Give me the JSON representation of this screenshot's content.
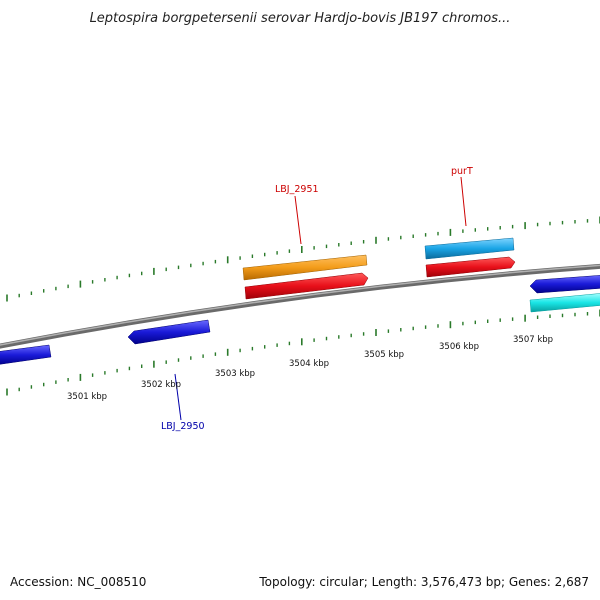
{
  "title": "Leptospira borgpetersenii serovar Hardjo-bovis JB197 chromos...",
  "footer": {
    "accession": "Accession: NC_008510",
    "summary": "Topology: circular; Length: 3,576,473 bp; Genes: 2,687"
  },
  "kbp_labels": [
    "3501 kbp",
    "3502 kbp",
    "3503 kbp",
    "3504 kbp",
    "3505 kbp",
    "3506 kbp",
    "3507 kbp"
  ],
  "gene_labels": [
    {
      "text": "LBJ_2951",
      "color": "#cc0000"
    },
    {
      "text": "purT",
      "color": "#cc0000"
    },
    {
      "text": "LBJ_2950",
      "color": "#0000aa"
    }
  ],
  "colors": {
    "backbone": "#8a8a8a",
    "ticks": "#2a7a2a",
    "orange": "#f39c1a",
    "red": "#e8101a",
    "sky_blue": "#1aa5e6",
    "blue": "#1a1ad8",
    "cyan": "#1ae6e6"
  }
}
